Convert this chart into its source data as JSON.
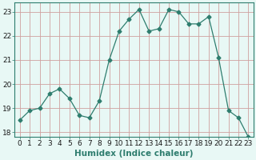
{
  "xlabel": "Humidex (Indice chaleur)",
  "x": [
    0,
    1,
    2,
    3,
    4,
    5,
    6,
    7,
    8,
    9,
    10,
    11,
    12,
    13,
    14,
    15,
    16,
    17,
    18,
    19,
    20,
    21,
    22,
    23
  ],
  "y": [
    18.5,
    18.9,
    19.0,
    19.6,
    19.8,
    19.4,
    18.7,
    18.6,
    19.3,
    21.0,
    22.2,
    22.7,
    23.1,
    22.2,
    22.3,
    23.1,
    23.0,
    22.5,
    22.5,
    22.8,
    21.1,
    18.9,
    18.6,
    17.8
  ],
  "line_color": "#2e7d6e",
  "marker": "D",
  "marker_size": 2.5,
  "bg_color": "#e8f8f5",
  "grid_color": "#d0a0a0",
  "ylim": [
    17.8,
    23.4
  ],
  "yticks": [
    18,
    19,
    20,
    21,
    22,
    23
  ],
  "xlim": [
    -0.5,
    23.5
  ],
  "tick_fontsize": 6.5,
  "label_fontsize": 7.5
}
